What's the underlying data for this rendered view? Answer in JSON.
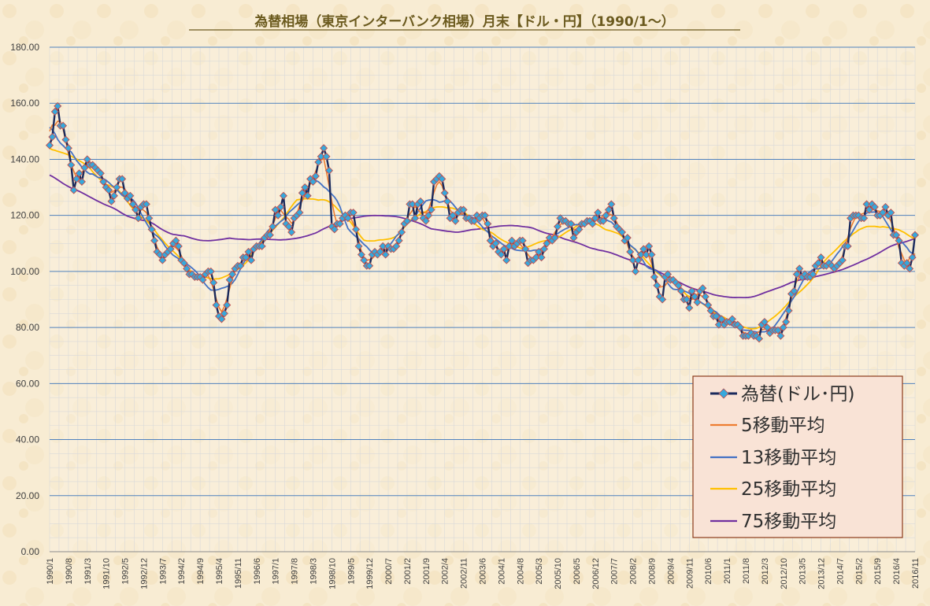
{
  "chart_data": {
    "type": "line",
    "title": "為替相場（東京インターバンク相場）月末【ドル・円】（1990/1～）",
    "xlabel": "",
    "ylabel": "",
    "ylim": [
      0,
      180
    ],
    "yticks": [
      "0.00",
      "20.00",
      "40.00",
      "60.00",
      "80.00",
      "100.00",
      "120.00",
      "140.00",
      "160.00",
      "180.00"
    ],
    "x_start": "1990/1",
    "x_end": "2016/11",
    "x_tick_labels": [
      "1990/1",
      "1990/8",
      "1991/3",
      "1991/10",
      "1992/5",
      "1992/12",
      "1993/7",
      "1994/2",
      "1994/9",
      "1995/4",
      "1995/11",
      "1996/6",
      "1997/1",
      "1997/8",
      "1998/3",
      "1998/10",
      "1999/5",
      "1999/12",
      "2000/7",
      "2001/2",
      "2001/9",
      "2002/4",
      "2002/11",
      "2003/6",
      "2004/1",
      "2004/8",
      "2005/3",
      "2005/10",
      "2006/5",
      "2006/12",
      "2007/7",
      "2008/2",
      "2008/9",
      "2009/4",
      "2009/11",
      "2010/6",
      "2011/1",
      "2011/8",
      "2012/3",
      "2012/10",
      "2013/5",
      "2013/12",
      "2014/7",
      "2015/2",
      "2015/9",
      "2016/4",
      "2016/11"
    ],
    "grid": true,
    "legend_position": "bottom-right",
    "rate_anchors": [
      [
        0,
        145
      ],
      [
        1,
        148
      ],
      [
        2,
        157
      ],
      [
        3,
        159
      ],
      [
        4,
        152
      ],
      [
        5,
        152
      ],
      [
        6,
        147
      ],
      [
        7,
        144
      ],
      [
        8,
        138
      ],
      [
        9,
        129
      ],
      [
        10,
        133
      ],
      [
        11,
        135
      ],
      [
        12,
        132
      ],
      [
        13,
        137
      ],
      [
        14,
        140
      ],
      [
        15,
        138
      ],
      [
        16,
        138
      ],
      [
        17,
        137
      ],
      [
        18,
        136
      ],
      [
        19,
        135
      ],
      [
        20,
        132
      ],
      [
        21,
        130
      ],
      [
        22,
        129
      ],
      [
        23,
        125
      ],
      [
        24,
        127
      ],
      [
        25,
        130
      ],
      [
        26,
        133
      ],
      [
        27,
        133
      ],
      [
        28,
        128
      ],
      [
        29,
        126
      ],
      [
        30,
        127
      ],
      [
        31,
        124
      ],
      [
        32,
        122
      ],
      [
        33,
        119
      ],
      [
        34,
        123
      ],
      [
        35,
        124
      ],
      [
        36,
        124
      ],
      [
        37,
        119
      ],
      [
        38,
        115
      ],
      [
        39,
        111
      ],
      [
        40,
        107
      ],
      [
        41,
        106
      ],
      [
        42,
        104
      ],
      [
        43,
        106
      ],
      [
        44,
        107
      ],
      [
        45,
        108
      ],
      [
        46,
        110
      ],
      [
        47,
        111
      ],
      [
        48,
        109
      ],
      [
        49,
        104
      ],
      [
        50,
        103
      ],
      [
        51,
        101
      ],
      [
        52,
        99
      ],
      [
        53,
        99
      ],
      [
        54,
        98
      ],
      [
        55,
        98
      ],
      [
        56,
        98
      ],
      [
        57,
        97
      ],
      [
        58,
        99
      ],
      [
        59,
        100
      ],
      [
        60,
        100
      ],
      [
        61,
        96
      ],
      [
        62,
        88
      ],
      [
        63,
        84
      ],
      [
        64,
        83
      ],
      [
        65,
        85
      ],
      [
        66,
        88
      ],
      [
        67,
        97
      ],
      [
        68,
        99
      ],
      [
        69,
        101
      ],
      [
        70,
        102
      ],
      [
        71,
        102
      ],
      [
        72,
        105
      ],
      [
        73,
        105
      ],
      [
        74,
        107
      ],
      [
        75,
        104
      ],
      [
        76,
        108
      ],
      [
        77,
        109
      ],
      [
        78,
        109
      ],
      [
        79,
        109
      ],
      [
        80,
        112
      ],
      [
        81,
        113
      ],
      [
        82,
        113
      ],
      [
        83,
        116
      ],
      [
        84,
        122
      ],
      [
        85,
        120
      ],
      [
        86,
        123
      ],
      [
        87,
        127
      ],
      [
        88,
        117
      ],
      [
        89,
        116
      ],
      [
        90,
        114
      ],
      [
        91,
        119
      ],
      [
        92,
        120
      ],
      [
        93,
        121
      ],
      [
        94,
        128
      ],
      [
        95,
        130
      ],
      [
        96,
        127
      ],
      [
        97,
        133
      ],
      [
        98,
        132
      ],
      [
        99,
        134
      ],
      [
        100,
        139
      ],
      [
        101,
        141
      ],
      [
        102,
        144
      ],
      [
        103,
        141
      ],
      [
        104,
        136
      ],
      [
        105,
        116
      ],
      [
        106,
        115
      ],
      [
        107,
        117
      ],
      [
        108,
        117
      ],
      [
        109,
        119
      ],
      [
        110,
        120
      ],
      [
        111,
        119
      ],
      [
        112,
        121
      ],
      [
        113,
        121
      ],
      [
        114,
        115
      ],
      [
        115,
        109
      ],
      [
        116,
        106
      ],
      [
        117,
        104
      ],
      [
        118,
        102
      ],
      [
        119,
        102
      ],
      [
        120,
        106
      ],
      [
        121,
        107
      ],
      [
        122,
        106
      ],
      [
        123,
        107
      ],
      [
        124,
        109
      ],
      [
        125,
        106
      ],
      [
        126,
        109
      ],
      [
        127,
        108
      ],
      [
        128,
        108
      ],
      [
        129,
        109
      ],
      [
        130,
        111
      ],
      [
        131,
        114
      ],
      [
        132,
        117
      ],
      [
        133,
        118
      ],
      [
        134,
        124
      ],
      [
        135,
        124
      ],
      [
        136,
        119
      ],
      [
        137,
        124
      ],
      [
        138,
        125
      ],
      [
        139,
        119
      ],
      [
        140,
        118
      ],
      [
        141,
        120
      ],
      [
        142,
        122
      ],
      [
        143,
        132
      ],
      [
        144,
        133
      ],
      [
        145,
        134
      ],
      [
        146,
        133
      ],
      [
        147,
        128
      ],
      [
        148,
        125
      ],
      [
        149,
        119
      ],
      [
        150,
        120
      ],
      [
        151,
        118
      ],
      [
        152,
        121
      ],
      [
        153,
        122
      ],
      [
        154,
        122
      ],
      [
        155,
        119
      ],
      [
        156,
        119
      ],
      [
        157,
        118
      ],
      [
        158,
        118
      ],
      [
        159,
        120
      ],
      [
        160,
        119
      ],
      [
        161,
        120
      ],
      [
        162,
        120
      ],
      [
        163,
        117
      ],
      [
        164,
        111
      ],
      [
        165,
        109
      ],
      [
        166,
        110
      ],
      [
        167,
        107
      ],
      [
        168,
        106
      ],
      [
        169,
        108
      ],
      [
        170,
        104
      ],
      [
        171,
        109
      ],
      [
        172,
        111
      ],
      [
        173,
        109
      ],
      [
        174,
        110
      ],
      [
        175,
        111
      ],
      [
        176,
        111
      ],
      [
        177,
        108
      ],
      [
        178,
        103
      ],
      [
        179,
        104
      ],
      [
        180,
        104
      ],
      [
        181,
        105
      ],
      [
        182,
        107
      ],
      [
        183,
        105
      ],
      [
        184,
        108
      ],
      [
        185,
        110
      ],
      [
        186,
        112
      ],
      [
        187,
        111
      ],
      [
        188,
        112
      ],
      [
        189,
        116
      ],
      [
        190,
        119
      ],
      [
        191,
        118
      ],
      [
        192,
        118
      ],
      [
        193,
        117
      ],
      [
        194,
        117
      ],
      [
        195,
        112
      ],
      [
        196,
        114
      ],
      [
        197,
        115
      ],
      [
        198,
        117
      ],
      [
        199,
        117
      ],
      [
        200,
        118
      ],
      [
        201,
        118
      ],
      [
        202,
        117
      ],
      [
        203,
        119
      ],
      [
        204,
        121
      ],
      [
        205,
        118
      ],
      [
        206,
        118
      ],
      [
        207,
        120
      ],
      [
        208,
        122
      ],
      [
        209,
        124
      ],
      [
        210,
        119
      ],
      [
        211,
        116
      ],
      [
        212,
        115
      ],
      [
        213,
        114
      ],
      [
        214,
        111
      ],
      [
        215,
        112
      ],
      [
        216,
        107
      ],
      [
        217,
        104
      ],
      [
        218,
        100
      ],
      [
        219,
        104
      ],
      [
        220,
        106
      ],
      [
        221,
        108
      ],
      [
        222,
        106
      ],
      [
        223,
        109
      ],
      [
        224,
        106
      ],
      [
        225,
        98
      ],
      [
        226,
        95
      ],
      [
        227,
        91
      ],
      [
        228,
        90
      ],
      [
        229,
        98
      ],
      [
        230,
        99
      ],
      [
        231,
        97
      ],
      [
        232,
        97
      ],
      [
        233,
        96
      ],
      [
        234,
        95
      ],
      [
        235,
        93
      ],
      [
        236,
        90
      ],
      [
        237,
        90
      ],
      [
        238,
        87
      ],
      [
        239,
        93
      ],
      [
        240,
        91
      ],
      [
        241,
        89
      ],
      [
        242,
        93
      ],
      [
        243,
        94
      ],
      [
        244,
        91
      ],
      [
        245,
        88
      ],
      [
        246,
        86
      ],
      [
        247,
        84
      ],
      [
        248,
        84
      ],
      [
        249,
        81
      ],
      [
        250,
        83
      ],
      [
        251,
        81
      ],
      [
        252,
        82
      ],
      [
        253,
        82
      ],
      [
        254,
        83
      ],
      [
        255,
        81
      ],
      [
        256,
        81
      ],
      [
        257,
        80
      ],
      [
        258,
        77
      ],
      [
        259,
        77
      ],
      [
        260,
        77
      ],
      [
        261,
        78
      ],
      [
        262,
        77
      ],
      [
        263,
        77
      ],
      [
        264,
        76
      ],
      [
        265,
        81
      ],
      [
        266,
        82
      ],
      [
        267,
        80
      ],
      [
        268,
        78
      ],
      [
        269,
        79
      ],
      [
        270,
        79
      ],
      [
        271,
        79
      ],
      [
        272,
        77
      ],
      [
        273,
        80
      ],
      [
        274,
        82
      ],
      [
        275,
        86
      ],
      [
        276,
        92
      ],
      [
        277,
        93
      ],
      [
        278,
        99
      ],
      [
        279,
        101
      ],
      [
        280,
        98
      ],
      [
        281,
        99
      ],
      [
        282,
        98
      ],
      [
        283,
        98
      ],
      [
        284,
        99
      ],
      [
        285,
        102
      ],
      [
        286,
        103
      ],
      [
        287,
        105
      ],
      [
        288,
        102
      ],
      [
        289,
        102
      ],
      [
        290,
        103
      ],
      [
        291,
        102
      ],
      [
        292,
        101
      ],
      [
        293,
        102
      ],
      [
        294,
        103
      ],
      [
        295,
        104
      ],
      [
        296,
        109
      ],
      [
        297,
        109
      ],
      [
        298,
        119
      ],
      [
        299,
        120
      ],
      [
        300,
        120
      ],
      [
        301,
        120
      ],
      [
        302,
        119
      ],
      [
        303,
        119
      ],
      [
        304,
        124
      ],
      [
        305,
        122
      ],
      [
        306,
        124
      ],
      [
        307,
        123
      ],
      [
        308,
        120
      ],
      [
        309,
        120
      ],
      [
        310,
        121
      ],
      [
        311,
        123
      ],
      [
        312,
        120
      ],
      [
        313,
        121
      ],
      [
        314,
        113
      ],
      [
        315,
        113
      ],
      [
        316,
        111
      ],
      [
        317,
        103
      ],
      [
        318,
        102
      ],
      [
        319,
        103
      ],
      [
        320,
        101
      ],
      [
        321,
        105
      ],
      [
        322,
        113
      ]
    ],
    "series": [
      {
        "name": "為替(ドル･円)",
        "color": "#1a2a5c",
        "marker_color": "#36a8dc",
        "marker_edge": "#c0504d",
        "type": "actual"
      },
      {
        "name": "5移動平均",
        "color": "#ed7d31",
        "window": 5
      },
      {
        "name": "13移動平均",
        "color": "#4472c4",
        "window": 13
      },
      {
        "name": "25移動平均",
        "color": "#ffc000",
        "window": 25
      },
      {
        "name": "75移動平均",
        "color": "#7030a0",
        "window": 75
      }
    ]
  }
}
